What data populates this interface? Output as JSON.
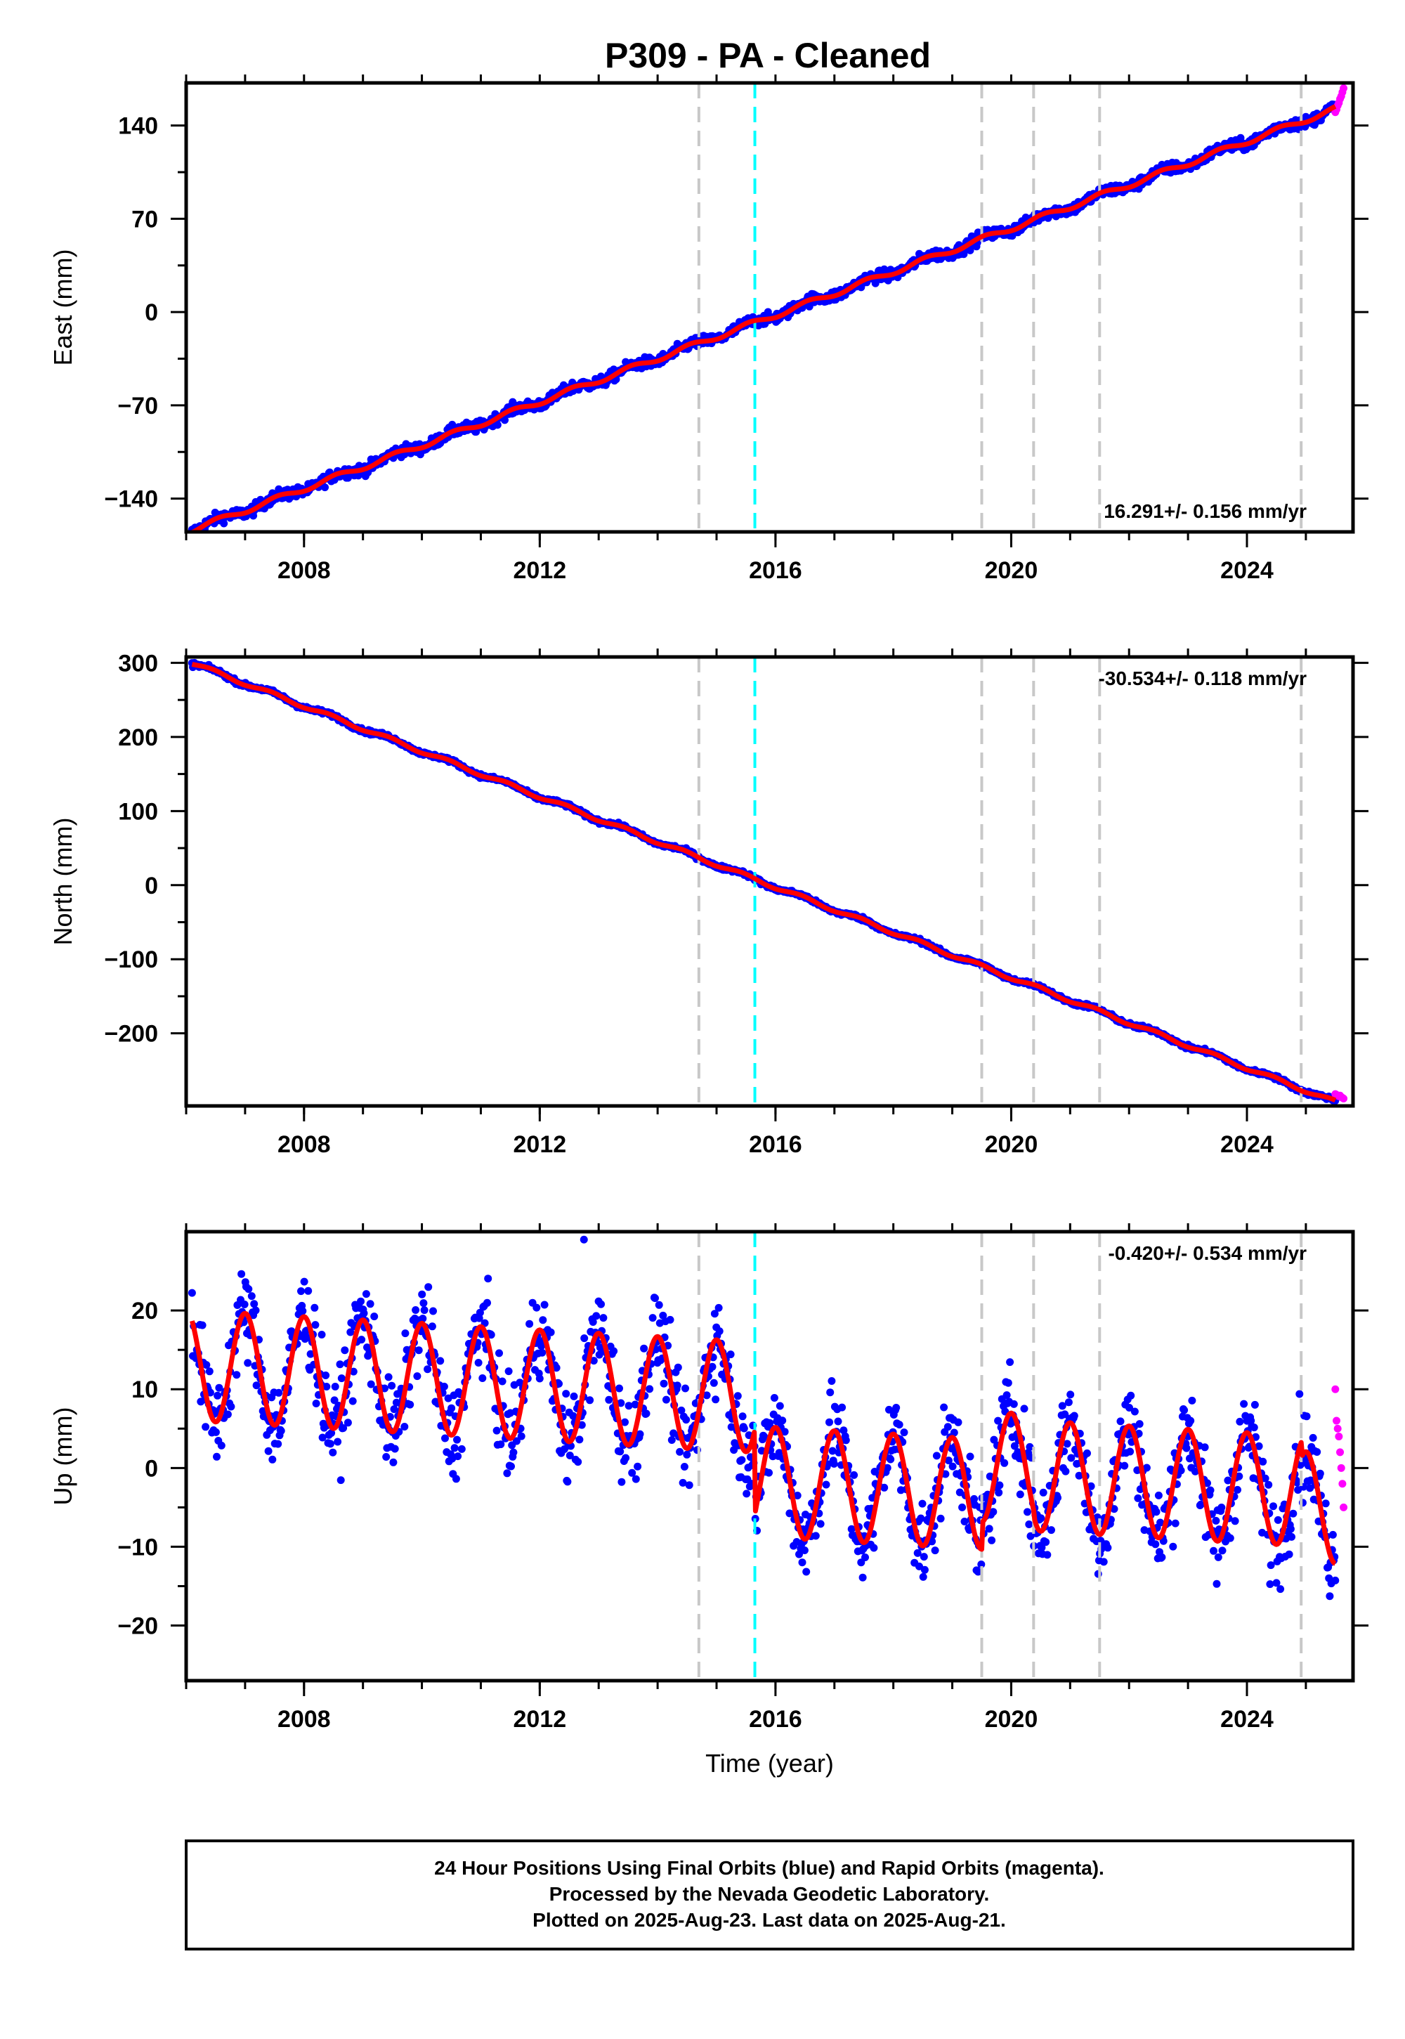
{
  "title": "P309  - PA - Cleaned",
  "footer": {
    "line1": "24 Hour Positions Using Final Orbits (blue) and Rapid Orbits (magenta).",
    "line2": "Processed by the Nevada Geodetic Laboratory.",
    "line3": "Plotted on 2025-Aug-23. Last data on 2025-Aug-21."
  },
  "colors": {
    "final_orbits": "#0000ff",
    "rapid_orbits": "#ff00ff",
    "model_fit": "#ff0000",
    "equipment_change": "#c8c8c8",
    "earthquake": "#00ffff"
  },
  "chart_data": [
    {
      "type": "scatter",
      "panel": "east",
      "ylabel": "East (mm)",
      "xlabel": "",
      "rate_text": "16.291+/- 0.156 mm/yr",
      "rate_position": "bottom-right",
      "xlim": [
        2006.0,
        2025.8
      ],
      "ylim": [
        -165,
        172
      ],
      "xticks": [
        2008,
        2012,
        2016,
        2020,
        2024
      ],
      "xtick_labels": [
        "2008",
        "2012",
        "2016",
        "2020",
        "2024"
      ],
      "yticks": [
        -140,
        -70,
        0,
        70,
        140
      ],
      "ytick_labels": [
        "−140",
        "−70",
        "0",
        "70",
        "140"
      ],
      "model": {
        "t0": 2015.65,
        "offset": -8,
        "slope_mm_per_yr": 16.291,
        "annual_amp": 2.0,
        "phase": 0.3,
        "breaks": []
      },
      "series": [
        {
          "name": "Final Orbits",
          "x_range": [
            2006.1,
            2025.5
          ],
          "scatter_mm": 3.0
        },
        {
          "name": "Rapid Orbits",
          "x_range": [
            2025.5,
            2025.64
          ],
          "values": [
            150,
            152,
            155,
            157,
            160,
            162,
            165,
            168
          ]
        }
      ],
      "vlines_equipment": [
        2014.7,
        2019.5,
        2020.38,
        2021.5,
        2024.92
      ],
      "vlines_earthquake": [
        2015.65
      ]
    },
    {
      "type": "scatter",
      "panel": "north",
      "ylabel": "North (mm)",
      "xlabel": "",
      "rate_text": "-30.534+/- 0.118 mm/yr",
      "rate_position": "top-right",
      "xlim": [
        2006.0,
        2025.8
      ],
      "ylim": [
        -298,
        308
      ],
      "xticks": [
        2008,
        2012,
        2016,
        2020,
        2024
      ],
      "xtick_labels": [
        "2008",
        "2012",
        "2016",
        "2020",
        "2024"
      ],
      "yticks": [
        -200,
        -100,
        0,
        100,
        200,
        300
      ],
      "ytick_labels": [
        "−200",
        "−100",
        "0",
        "100",
        "200",
        "300"
      ],
      "model": {
        "t0": 2015.65,
        "offset": 8,
        "slope_mm_per_yr": -30.534,
        "annual_amp": 2.5,
        "phase": 1.2,
        "breaks": []
      },
      "series": [
        {
          "name": "Final Orbits",
          "x_range": [
            2006.1,
            2025.5
          ],
          "scatter_mm": 2.0
        },
        {
          "name": "Rapid Orbits",
          "x_range": [
            2025.5,
            2025.64
          ],
          "values": [
            -282,
            -283,
            -284,
            -285,
            -284,
            -286,
            -287,
            -288
          ]
        }
      ],
      "vlines_equipment": [
        2014.7,
        2019.5,
        2020.38,
        2021.5,
        2024.92
      ],
      "vlines_earthquake": [
        2015.65
      ]
    },
    {
      "type": "scatter",
      "panel": "up",
      "ylabel": "Up (mm)",
      "xlabel": "Time (year)",
      "rate_text": "-0.420+/- 0.534 mm/yr",
      "rate_position": "top-right",
      "xlim": [
        2006.0,
        2025.8
      ],
      "ylim": [
        -27,
        30
      ],
      "xticks": [
        2008,
        2012,
        2016,
        2020,
        2024
      ],
      "xtick_labels": [
        "2008",
        "2012",
        "2016",
        "2020",
        "2024"
      ],
      "yticks": [
        -20,
        -10,
        0,
        10,
        20
      ],
      "ytick_labels": [
        "−20",
        "−10",
        "0",
        "10",
        "20"
      ],
      "model": {
        "t0": 2015.65,
        "slope_mm_per_yr": -0.42,
        "annual_amp": 7.0,
        "phase": 0.75,
        "breaks": [
          {
            "x": 2006.0,
            "offset": 9.0
          },
          {
            "x": 2015.65,
            "offset": -1.7
          },
          {
            "x": 2019.5,
            "offset": 1.8
          },
          {
            "x": 2020.38,
            "offset": 1.0
          },
          {
            "x": 2021.5,
            "offset": 1.0
          },
          {
            "x": 2024.92,
            "offset": -1.0
          }
        ]
      },
      "series": [
        {
          "name": "Final Orbits",
          "x_range": [
            2006.1,
            2025.5
          ],
          "scatter_mm": 4.0
        },
        {
          "name": "Rapid Orbits",
          "x_range": [
            2025.5,
            2025.64
          ],
          "values": [
            10,
            6,
            5,
            4,
            2,
            0,
            -2,
            -5
          ]
        }
      ],
      "outliers": [
        {
          "x": 2012.75,
          "y": 29
        }
      ],
      "vlines_equipment": [
        2014.7,
        2019.5,
        2020.38,
        2021.5,
        2024.92
      ],
      "vlines_earthquake": [
        2015.65
      ]
    }
  ]
}
